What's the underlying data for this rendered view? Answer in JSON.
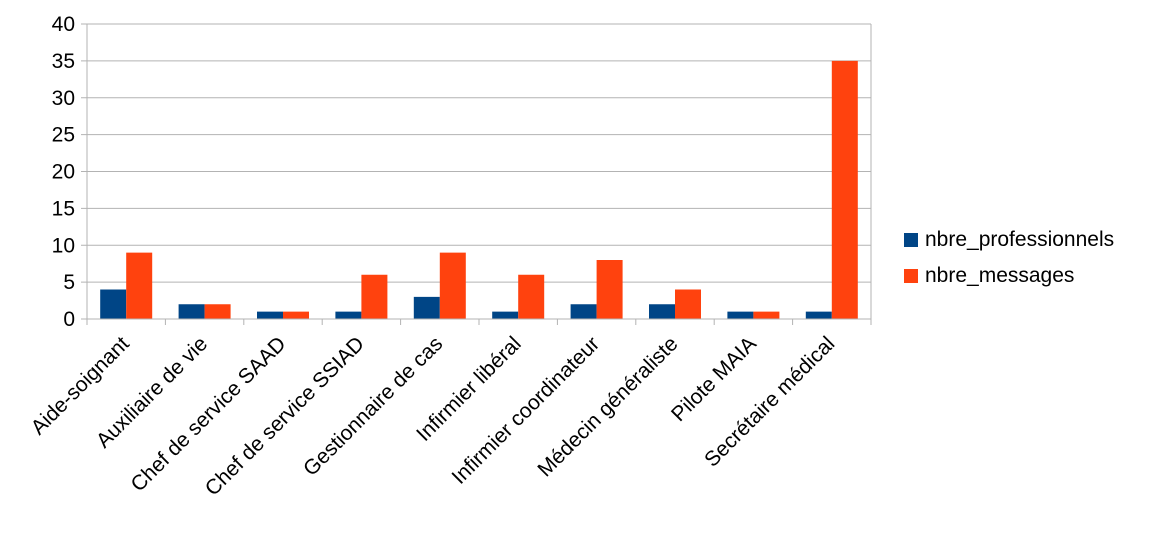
{
  "chart_data": {
    "type": "bar",
    "categories": [
      "Aide-soignant",
      "Auxiliaire de vie",
      "Chef de service SAAD",
      "Chef de service SSIAD",
      "Gestionnaire de cas",
      "Infirmier libéral",
      "Infirmier coordinateur",
      "Médecin généraliste",
      "Pilote MAIA",
      "Secrétaire médical"
    ],
    "series": [
      {
        "name": "nbre_professionnels",
        "color": "#004586",
        "values": [
          4,
          2,
          1,
          1,
          3,
          1,
          2,
          2,
          1,
          1
        ]
      },
      {
        "name": "nbre_messages",
        "color": "#ff420e",
        "values": [
          9,
          2,
          1,
          6,
          9,
          6,
          8,
          4,
          1,
          35
        ]
      }
    ],
    "yticks": [
      "0",
      "5",
      "10",
      "15",
      "20",
      "25",
      "30",
      "35",
      "40"
    ],
    "ylim": [
      0,
      40
    ],
    "grid": true,
    "legend": "right"
  }
}
